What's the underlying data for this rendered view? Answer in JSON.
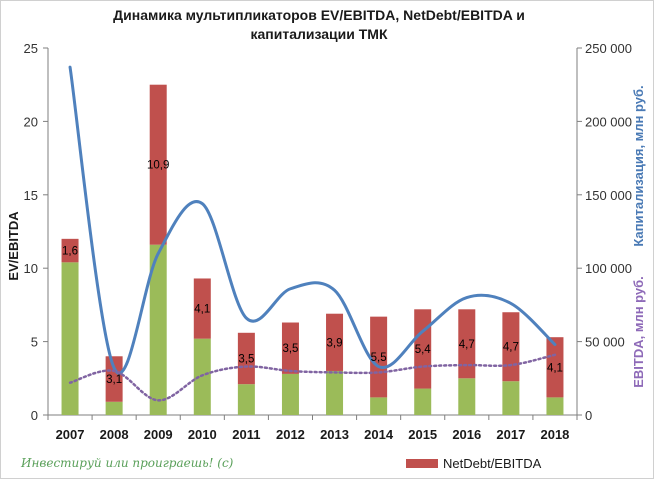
{
  "chart_data": {
    "type": "combo",
    "title_line1": "Динамика мультипликаторов EV/EBITDA, NetDebt/EBITDA и",
    "title_line2": "капитализации ТМК",
    "ylabel_left": "EV/EBITDA",
    "ylabel_right_top": "Капитализация, млн руб.",
    "ylabel_right_bottom": "EBITDA, млн руб.",
    "left_axis": {
      "min": 0,
      "max": 25,
      "ticks": [
        "0",
        "5",
        "10",
        "15",
        "20",
        "25"
      ]
    },
    "right_axis": {
      "min": 0,
      "max": 250000,
      "ticks": [
        "0",
        "50 000",
        "100 000",
        "150 000",
        "200 000",
        "250 000"
      ]
    },
    "categories": [
      "2007",
      "2008",
      "2009",
      "2010",
      "2011",
      "2012",
      "2013",
      "2014",
      "2015",
      "2016",
      "2017",
      "2018"
    ],
    "series": [
      {
        "kind": "stacked-bar-base",
        "axis": "left",
        "color": "#9bbb59",
        "values": [
          10.4,
          0.9,
          11.6,
          5.2,
          2.1,
          2.8,
          3.0,
          1.2,
          1.8,
          2.5,
          2.3,
          1.2
        ]
      },
      {
        "name": "NetDebt/EBITDA",
        "kind": "stacked-bar-top",
        "axis": "left",
        "color": "#c0504d",
        "values": [
          1.6,
          3.1,
          10.9,
          4.1,
          3.5,
          3.5,
          3.9,
          5.5,
          5.4,
          4.7,
          4.7,
          4.1
        ],
        "labels": [
          "1,6",
          "3,1",
          "10,9",
          "4,1",
          "3,5",
          "3,5",
          "3,9",
          "5,5",
          "5,4",
          "4,7",
          "4,7",
          "4,1"
        ]
      },
      {
        "kind": "smooth-line",
        "axis": "right",
        "color": "#4f81bd",
        "values": [
          237000,
          32000,
          110000,
          144000,
          66000,
          86000,
          85000,
          33000,
          57000,
          80000,
          76000,
          48000
        ]
      },
      {
        "kind": "dotted-line",
        "axis": "right",
        "color": "#8064a2",
        "values": [
          22000,
          30000,
          10000,
          27000,
          33000,
          30000,
          29000,
          29000,
          33000,
          34000,
          34000,
          41000
        ]
      }
    ],
    "legend": {
      "position": "bottom-right",
      "entries": [
        "NetDebt/EBITDA"
      ]
    },
    "grid": false
  },
  "watermark_text": "Инвестируй или проиграешь! (с)"
}
